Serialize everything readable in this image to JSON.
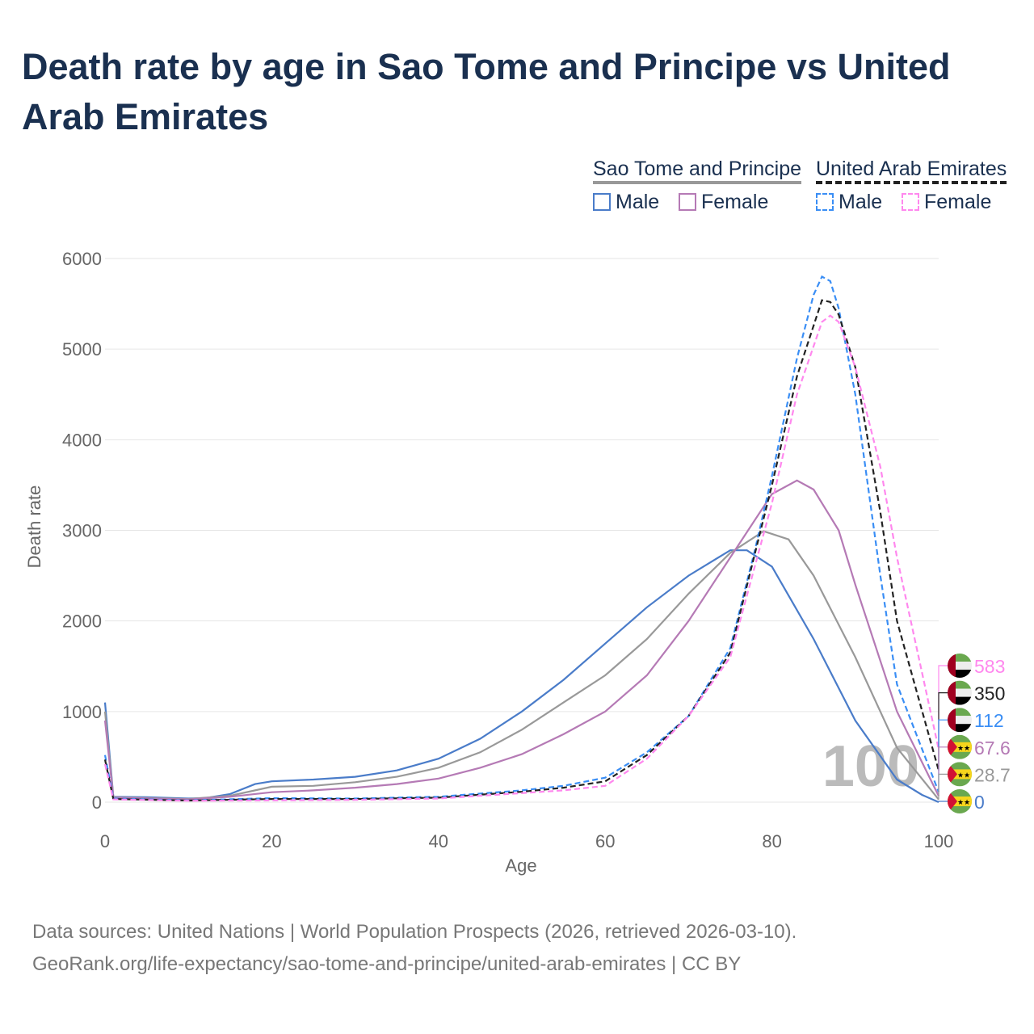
{
  "title": "Death rate by age in Sao Tome and Principe vs United Arab Emirates",
  "legend": {
    "group1": {
      "label": "Sao Tome and Principe",
      "male": "Male",
      "female": "Female"
    },
    "group2": {
      "label": "United Arab Emirates",
      "male": "Male",
      "female": "Female"
    }
  },
  "footer": {
    "line1": "Data sources: United Nations | World Population Prospects (2026, retrieved 2026-03-10).",
    "line2": "GeoRank.org/life-expectancy/sao-tome-and-principe/united-arab-emirates | CC BY"
  },
  "chart_data": {
    "type": "line",
    "title": "Death rate by age in Sao Tome and Principe vs United Arab Emirates",
    "xlabel": "Age",
    "ylabel": "Death rate",
    "xlim": [
      0,
      100
    ],
    "ylim": [
      0,
      6000
    ],
    "xticks": [
      "0",
      "20",
      "40",
      "60",
      "80",
      "100"
    ],
    "yticks": [
      "0",
      "1000",
      "2000",
      "3000",
      "4000",
      "5000",
      "6000"
    ],
    "grid": true,
    "watermark": "100",
    "series": [
      {
        "name": "Sao Tome and Principe Male",
        "color": "#4a7cc9",
        "dash": false,
        "end_label": "0",
        "flag": "stp",
        "x": [
          0,
          1,
          5,
          10,
          12,
          15,
          18,
          20,
          25,
          30,
          35,
          40,
          45,
          50,
          55,
          60,
          65,
          70,
          75,
          77,
          80,
          85,
          90,
          95,
          98,
          100
        ],
        "y": [
          1100,
          60,
          55,
          40,
          45,
          90,
          200,
          230,
          250,
          280,
          350,
          480,
          700,
          1000,
          1350,
          1750,
          2150,
          2500,
          2780,
          2780,
          2600,
          1800,
          900,
          250,
          80,
          0
        ]
      },
      {
        "name": "Sao Tome and Principe Total",
        "color": "#999999",
        "dash": false,
        "end_label": "28.7",
        "flag": "stp",
        "x": [
          0,
          1,
          10,
          15,
          20,
          25,
          30,
          35,
          40,
          45,
          50,
          55,
          60,
          65,
          70,
          75,
          79,
          82,
          85,
          90,
          95,
          100
        ],
        "y": [
          1000,
          55,
          35,
          70,
          170,
          180,
          220,
          280,
          380,
          550,
          800,
          1100,
          1400,
          1800,
          2300,
          2750,
          2990,
          2900,
          2500,
          1600,
          600,
          29
        ]
      },
      {
        "name": "Sao Tome and Principe Female",
        "color": "#b57ab5",
        "dash": false,
        "end_label": "67.6",
        "flag": "stp",
        "x": [
          0,
          1,
          10,
          15,
          20,
          25,
          30,
          35,
          40,
          45,
          50,
          55,
          60,
          65,
          70,
          75,
          80,
          83,
          85,
          88,
          90,
          95,
          100
        ],
        "y": [
          900,
          50,
          30,
          60,
          110,
          130,
          160,
          200,
          260,
          380,
          530,
          750,
          1000,
          1400,
          2000,
          2700,
          3400,
          3550,
          3450,
          3000,
          2400,
          1000,
          68
        ]
      },
      {
        "name": "United Arab Emirates Male",
        "color": "#3a8ef5",
        "dash": true,
        "end_label": "112",
        "flag": "uae",
        "x": [
          0,
          1,
          10,
          20,
          30,
          40,
          50,
          55,
          60,
          65,
          70,
          75,
          78,
          80,
          83,
          85,
          86,
          87,
          88,
          90,
          93,
          95,
          100
        ],
        "y": [
          520,
          40,
          20,
          45,
          40,
          60,
          130,
          180,
          270,
          550,
          950,
          1700,
          2800,
          3600,
          4900,
          5600,
          5800,
          5750,
          5450,
          4500,
          2500,
          1300,
          112
        ]
      },
      {
        "name": "United Arab Emirates Total",
        "color": "#222222",
        "dash": true,
        "end_label": "350",
        "flag": "uae",
        "x": [
          0,
          1,
          10,
          20,
          30,
          40,
          50,
          55,
          60,
          65,
          70,
          75,
          80,
          83,
          86,
          87,
          88,
          90,
          93,
          95,
          100
        ],
        "y": [
          470,
          35,
          18,
          35,
          35,
          50,
          115,
          160,
          230,
          520,
          950,
          1650,
          3500,
          4700,
          5540,
          5520,
          5380,
          4800,
          3200,
          2000,
          350
        ]
      },
      {
        "name": "United Arab Emirates Female",
        "color": "#ff88ee",
        "dash": true,
        "end_label": "583",
        "flag": "uae",
        "x": [
          0,
          1,
          10,
          20,
          30,
          40,
          50,
          55,
          60,
          65,
          70,
          75,
          80,
          83,
          86,
          87,
          88,
          90,
          93,
          95,
          100
        ],
        "y": [
          420,
          30,
          15,
          20,
          25,
          40,
          100,
          130,
          180,
          480,
          950,
          1600,
          3300,
          4500,
          5300,
          5370,
          5300,
          4800,
          3700,
          2700,
          583
        ]
      }
    ]
  }
}
